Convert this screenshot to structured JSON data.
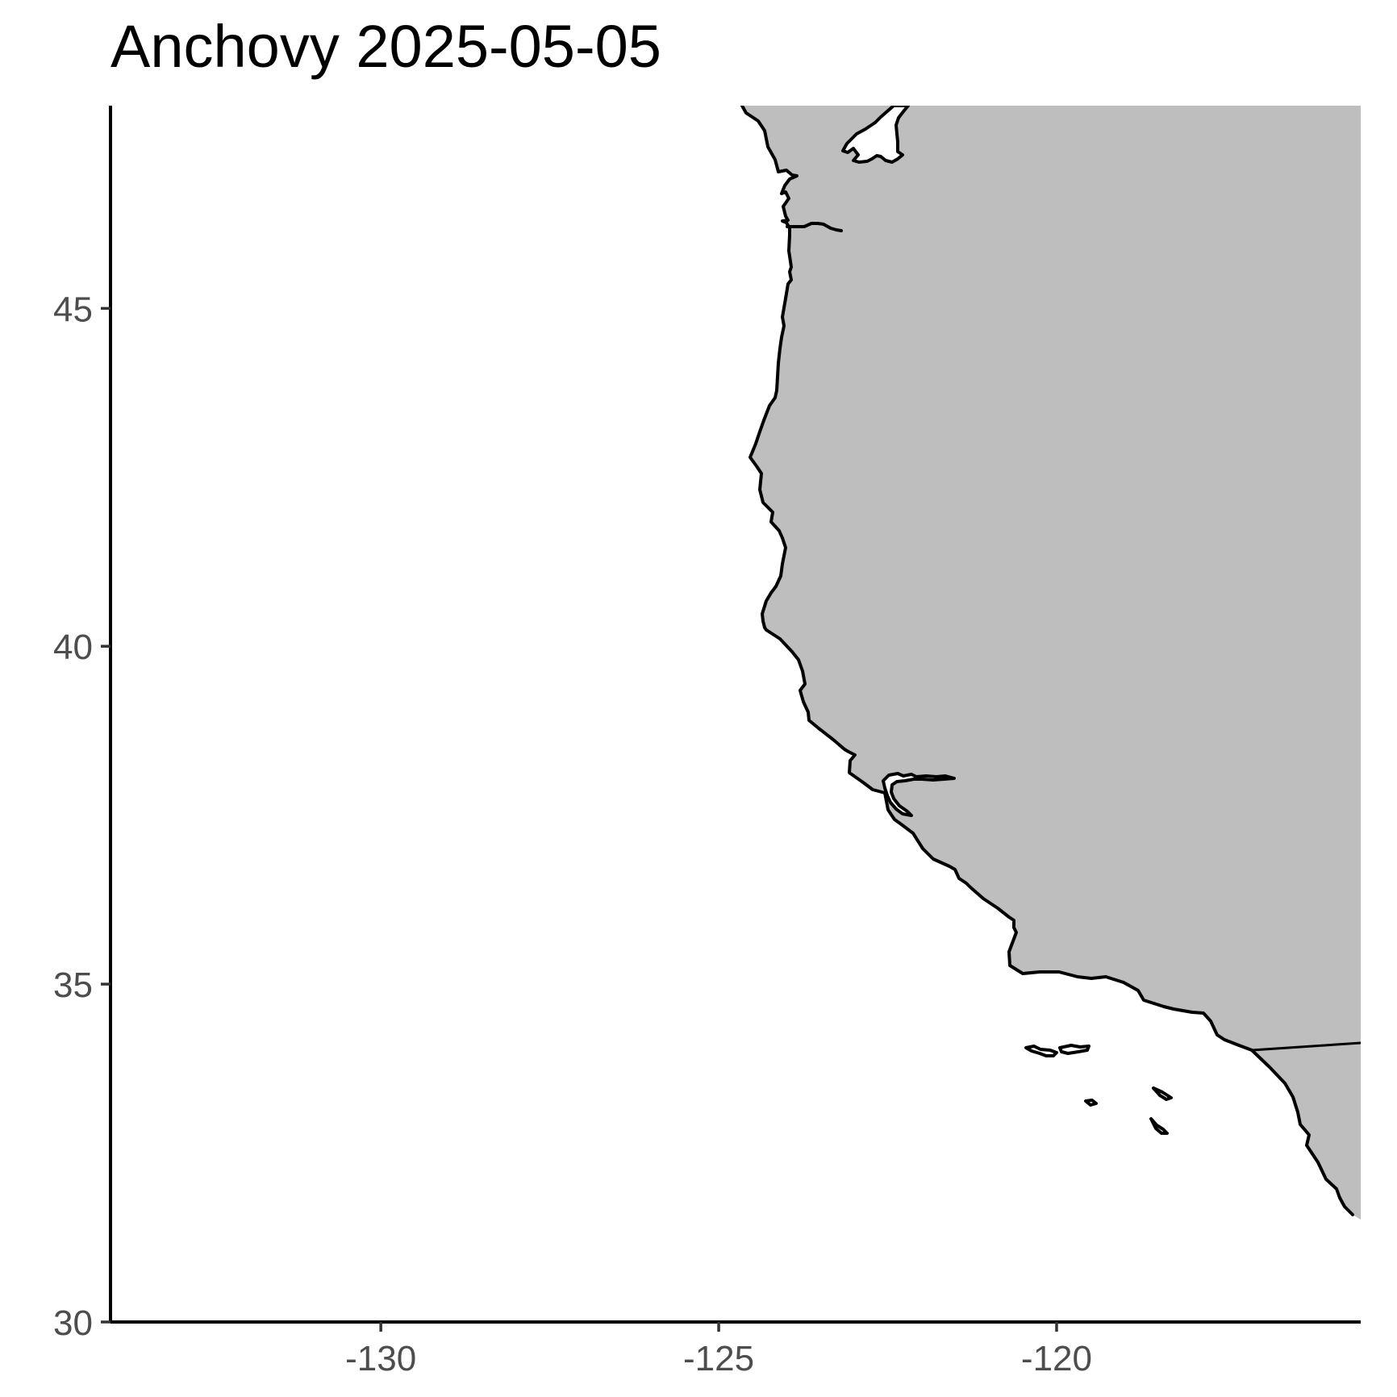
{
  "title": "Anchovy 2025-05-05",
  "map": {
    "lon_range": [
      -134,
      -115.5
    ],
    "lat_range": [
      30,
      48
    ],
    "land_color": "#bebebe",
    "ocean_color": "#ffffff",
    "coastline_color": "#000000",
    "region": "US West Coast"
  },
  "axes": {
    "x_ticks": [
      {
        "value": -130,
        "label": "-130"
      },
      {
        "value": -125,
        "label": "-125"
      },
      {
        "value": -120,
        "label": "-120"
      }
    ],
    "y_ticks": [
      {
        "value": 30,
        "label": "30"
      },
      {
        "value": 35,
        "label": "35"
      },
      {
        "value": 40,
        "label": "40"
      },
      {
        "value": 45,
        "label": "45"
      }
    ]
  }
}
